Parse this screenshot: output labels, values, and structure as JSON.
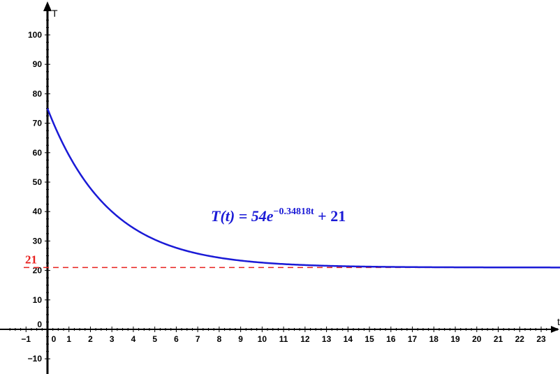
{
  "chart_data": {
    "type": "line",
    "xlabel": "t",
    "ylabel": "T",
    "xlim": [
      -1.8,
      24
    ],
    "ylim": [
      -12,
      106
    ],
    "x_ticks": [
      -1,
      0,
      1,
      2,
      3,
      4,
      5,
      6,
      7,
      8,
      9,
      10,
      11,
      12,
      13,
      14,
      15,
      16,
      17,
      18,
      19,
      20,
      21,
      22,
      23
    ],
    "y_ticks": [
      -10,
      0,
      10,
      20,
      30,
      40,
      50,
      60,
      70,
      80,
      90,
      100
    ],
    "series": [
      {
        "function": {
          "a": 54,
          "k": -0.34818,
          "c": 21
        },
        "x_range": [
          0,
          24
        ],
        "color": "#1a1ad6"
      }
    ],
    "asymptote": {
      "y": 21,
      "label": "21",
      "color": "#e8201e",
      "style": "dashed"
    },
    "annotation": {
      "lhs": "T(t) = 54e",
      "exponent": "−0.34818t",
      "rhs": " + 21",
      "color": "#1a1ad6"
    }
  }
}
